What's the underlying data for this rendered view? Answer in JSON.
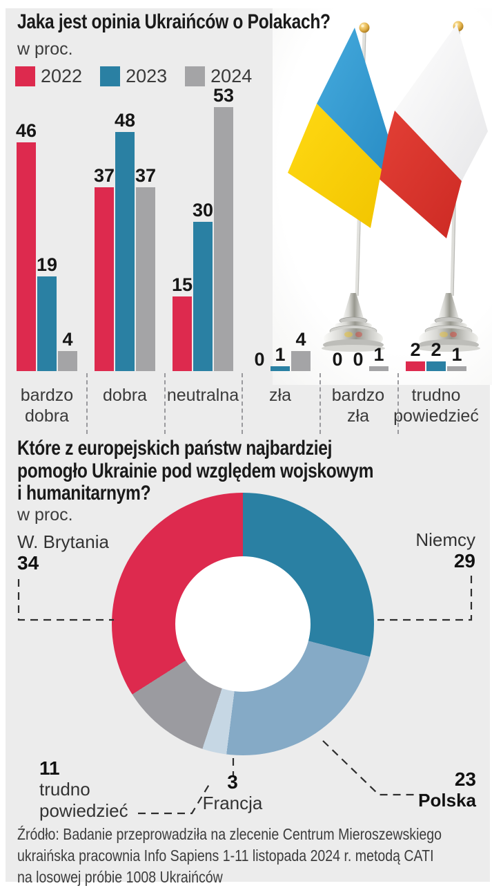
{
  "page": {
    "background_color": "#ececec",
    "accent_red": "#dd2a4e",
    "accent_teal": "#2a80a3",
    "accent_gray": "#a4a4a6"
  },
  "bar_section": {
    "title": "Jaka jest opinia Ukraińców o Polakach?",
    "unit_label": "w proc."
  },
  "donut_section": {
    "title_lines": [
      "Które z europejskich państw najbardziej",
      "pomogło Ukrainie pod względem wojskowym",
      "i humanitarnym?"
    ],
    "unit_label": "w proc."
  },
  "source": {
    "lines": [
      "Źródło: Badanie przeprowadziła na zlecenie Centrum Mieroszewskiego",
      "ukraińska pracownia Info Sapiens 1-11 listopada 2024 r. metodą CATI",
      "na losowej próbie 1008 Ukraińców"
    ]
  },
  "chart_data": [
    {
      "type": "bar",
      "title": "Jaka jest opinia Ukraińców o Polakach?",
      "unit": "w proc.",
      "categories": [
        "bardzo dobra",
        "dobra",
        "neutralna",
        "zła",
        "bardzo zła",
        "trudno powiedzieć"
      ],
      "series": [
        {
          "name": "2022",
          "color": "#dd2a4e",
          "values": [
            46,
            37,
            15,
            0,
            0,
            2
          ]
        },
        {
          "name": "2023",
          "color": "#2a80a3",
          "values": [
            19,
            48,
            30,
            1,
            0,
            2
          ]
        },
        {
          "name": "2024",
          "color": "#a4a4a6",
          "values": [
            4,
            37,
            53,
            4,
            1,
            1
          ]
        }
      ],
      "ylim": [
        0,
        53
      ],
      "grid": false,
      "value_labels": true,
      "legend_position": "top-left"
    },
    {
      "type": "pie",
      "subtype": "donut",
      "title": "Które z europejskich państw najbardziej pomogło Ukrainie pod względem wojskowym i humanitarnym?",
      "unit": "w proc.",
      "start_angle_deg": 0,
      "clockwise": true,
      "inner_radius_ratio": 0.52,
      "slices": [
        {
          "label": "Niemcy",
          "value": 29,
          "color": "#2a80a3"
        },
        {
          "label": "Polska",
          "value": 23,
          "color": "#85aac6"
        },
        {
          "label": "Francja",
          "value": 3,
          "color": "#c6d7e4"
        },
        {
          "label": "trudno powiedzieć",
          "value": 11,
          "color": "#9b9ba0"
        },
        {
          "label": "W. Brytania",
          "value": 34,
          "color": "#dd2a4e"
        }
      ]
    }
  ]
}
